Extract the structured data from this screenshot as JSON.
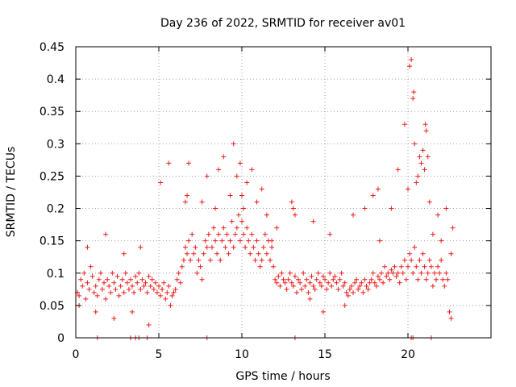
{
  "chart_data": {
    "type": "scatter",
    "title": "Day 236 of 2022, SRMTID for receiver av01",
    "xlabel": "GPS time / hours",
    "ylabel": "SRMTID / TECUs",
    "xlim": [
      0,
      25
    ],
    "ylim": [
      0,
      0.45
    ],
    "x_ticks": [
      0,
      5,
      10,
      15,
      20
    ],
    "x_tick_labels": [
      "0",
      "5",
      "10",
      "15",
      "20"
    ],
    "y_ticks": [
      0,
      0.05,
      0.1,
      0.15,
      0.2,
      0.25,
      0.3,
      0.35,
      0.4,
      0.45
    ],
    "y_tick_labels": [
      "0",
      "0.05",
      "0.1",
      "0.15",
      "0.2",
      "0.25",
      "0.3",
      "0.35",
      "0.4",
      "0.45"
    ],
    "grid": true,
    "marker": "plus",
    "color": "#ee1c1c",
    "series": [
      {
        "name": "SRMTID",
        "x": [
          0.1,
          0.2,
          0.3,
          0.4,
          0.5,
          0.6,
          0.7,
          0.8,
          0.9,
          1.0,
          1.1,
          1.2,
          1.3,
          1.4,
          1.5,
          1.6,
          1.7,
          1.8,
          1.9,
          2.0,
          2.1,
          2.2,
          2.3,
          2.4,
          2.5,
          2.6,
          2.7,
          2.8,
          2.9,
          3.0,
          3.1,
          3.2,
          3.3,
          3.4,
          3.5,
          3.6,
          3.7,
          3.8,
          3.9,
          4.0,
          4.1,
          4.2,
          4.3,
          4.4,
          4.5,
          4.6,
          4.7,
          4.8,
          4.9,
          5.0,
          5.1,
          5.2,
          5.3,
          5.4,
          5.5,
          5.6,
          5.7,
          5.8,
          5.9,
          6.0,
          6.1,
          6.2,
          6.3,
          6.4,
          6.5,
          6.6,
          6.7,
          6.8,
          6.9,
          7.0,
          7.1,
          7.2,
          7.3,
          7.4,
          7.5,
          7.6,
          7.7,
          7.8,
          7.9,
          8.0,
          8.1,
          8.2,
          8.3,
          8.4,
          8.5,
          8.6,
          8.7,
          8.8,
          8.9,
          9.0,
          9.1,
          9.2,
          9.3,
          9.4,
          9.5,
          9.6,
          9.7,
          9.8,
          9.9,
          10.0,
          10.1,
          10.2,
          10.3,
          10.4,
          10.5,
          10.6,
          10.7,
          10.8,
          10.9,
          11.0,
          11.1,
          11.2,
          11.3,
          11.4,
          11.5,
          11.6,
          11.7,
          11.8,
          11.9,
          12.0,
          12.1,
          12.2,
          12.3,
          12.4,
          12.5,
          12.6,
          12.7,
          12.8,
          12.9,
          13.0,
          13.1,
          13.2,
          13.3,
          13.4,
          13.5,
          13.6,
          13.7,
          13.8,
          13.9,
          14.0,
          14.1,
          14.2,
          14.3,
          14.4,
          14.5,
          14.6,
          14.7,
          14.8,
          14.9,
          15.0,
          15.1,
          15.2,
          15.3,
          15.4,
          15.5,
          15.6,
          15.7,
          15.8,
          15.9,
          16.0,
          16.1,
          16.2,
          16.3,
          16.4,
          16.5,
          16.6,
          16.7,
          16.8,
          16.9,
          17.0,
          17.1,
          17.2,
          17.3,
          17.4,
          17.5,
          17.6,
          17.7,
          17.8,
          17.9,
          18.0,
          18.1,
          18.2,
          18.3,
          18.4,
          18.5,
          18.6,
          18.7,
          18.8,
          18.9,
          19.0,
          19.1,
          19.2,
          19.3,
          19.4,
          19.5,
          19.6,
          19.7,
          19.8,
          19.9,
          20.0,
          20.1,
          20.2,
          20.3,
          20.4,
          20.5,
          20.6,
          20.7,
          20.8,
          20.9,
          21.0,
          21.1,
          21.2,
          21.3,
          21.4,
          21.5,
          21.6,
          21.7,
          21.8,
          21.9,
          22.0,
          22.1,
          22.2,
          22.3,
          22.4,
          22.5,
          22.6,
          22.7,
          0.2,
          0.7,
          1.2,
          1.8,
          2.3,
          2.9,
          3.4,
          3.9,
          4.4,
          5.1,
          5.6,
          6.6,
          6.7,
          6.8,
          7.6,
          7.9,
          8.4,
          8.6,
          8.9,
          9.3,
          9.5,
          9.7,
          9.9,
          10.0,
          10.1,
          10.3,
          10.6,
          10.9,
          11.2,
          11.5,
          11.8,
          12.1,
          13.0,
          13.1,
          13.2,
          14.1,
          14.3,
          14.9,
          15.3,
          16.2,
          16.7,
          17.4,
          17.9,
          18.2,
          18.3,
          19.0,
          19.4,
          19.8,
          20.0,
          20.1,
          20.2,
          20.3,
          20.35,
          20.4,
          20.5,
          20.6,
          20.7,
          20.8,
          20.9,
          21.0,
          21.05,
          21.1,
          21.2,
          21.3,
          21.5,
          21.8,
          22.0,
          22.3,
          22.6,
          1.3,
          3.3,
          3.6,
          3.8,
          4.3,
          7.9,
          13.2,
          20.2,
          20.3,
          21.4
        ],
        "y": [
          0.07,
          0.065,
          0.09,
          0.08,
          0.1,
          0.06,
          0.085,
          0.075,
          0.11,
          0.095,
          0.07,
          0.08,
          0.065,
          0.09,
          0.1,
          0.075,
          0.085,
          0.06,
          0.09,
          0.08,
          0.07,
          0.1,
          0.085,
          0.075,
          0.095,
          0.065,
          0.08,
          0.09,
          0.07,
          0.1,
          0.085,
          0.075,
          0.09,
          0.08,
          0.07,
          0.095,
          0.085,
          0.1,
          0.075,
          0.09,
          0.08,
          0.085,
          0.07,
          0.095,
          0.08,
          0.09,
          0.075,
          0.085,
          0.07,
          0.08,
          0.065,
          0.075,
          0.085,
          0.06,
          0.07,
          0.08,
          0.05,
          0.065,
          0.07,
          0.075,
          0.09,
          0.1,
          0.085,
          0.11,
          0.12,
          0.14,
          0.13,
          0.15,
          0.12,
          0.16,
          0.13,
          0.14,
          0.1,
          0.12,
          0.11,
          0.09,
          0.13,
          0.15,
          0.14,
          0.16,
          0.12,
          0.14,
          0.17,
          0.15,
          0.13,
          0.16,
          0.12,
          0.15,
          0.17,
          0.14,
          0.16,
          0.13,
          0.15,
          0.18,
          0.14,
          0.16,
          0.17,
          0.19,
          0.15,
          0.18,
          0.16,
          0.14,
          0.17,
          0.15,
          0.13,
          0.16,
          0.14,
          0.12,
          0.15,
          0.13,
          0.11,
          0.12,
          0.14,
          0.16,
          0.13,
          0.15,
          0.12,
          0.14,
          0.11,
          0.09,
          0.085,
          0.095,
          0.08,
          0.1,
          0.09,
          0.085,
          0.075,
          0.09,
          0.1,
          0.085,
          0.08,
          0.095,
          0.07,
          0.09,
          0.085,
          0.075,
          0.1,
          0.08,
          0.09,
          0.07,
          0.085,
          0.095,
          0.08,
          0.075,
          0.09,
          0.1,
          0.085,
          0.08,
          0.095,
          0.09,
          0.075,
          0.085,
          0.1,
          0.08,
          0.09,
          0.095,
          0.085,
          0.075,
          0.09,
          0.1,
          0.08,
          0.085,
          0.07,
          0.065,
          0.075,
          0.08,
          0.07,
          0.085,
          0.09,
          0.075,
          0.08,
          0.085,
          0.07,
          0.09,
          0.08,
          0.075,
          0.085,
          0.09,
          0.1,
          0.085,
          0.08,
          0.095,
          0.09,
          0.1,
          0.085,
          0.11,
          0.095,
          0.1,
          0.09,
          0.105,
          0.1,
          0.11,
          0.095,
          0.1,
          0.085,
          0.11,
          0.1,
          0.12,
          0.09,
          0.11,
          0.13,
          0.12,
          0.1,
          0.14,
          0.11,
          0.09,
          0.12,
          0.1,
          0.13,
          0.11,
          0.09,
          0.1,
          0.12,
          0.11,
          0.08,
          0.1,
          0.09,
          0.11,
          0.1,
          0.12,
          0.09,
          0.08,
          0.1,
          0.09,
          0.04,
          0.13,
          0.17,
          0.05,
          0.14,
          0.04,
          0.16,
          0.03,
          0.13,
          0.04,
          0.14,
          0.02,
          0.24,
          0.27,
          0.21,
          0.22,
          0.27,
          0.21,
          0.25,
          0.2,
          0.26,
          0.28,
          0.22,
          0.3,
          0.25,
          0.27,
          0.22,
          0.2,
          0.24,
          0.26,
          0.21,
          0.23,
          0.19,
          0.15,
          0.17,
          0.21,
          0.2,
          0.19,
          0.06,
          0.18,
          0.04,
          0.16,
          0.05,
          0.19,
          0.2,
          0.22,
          0.23,
          0.15,
          0.2,
          0.26,
          0.33,
          0.23,
          0.42,
          0.43,
          0.37,
          0.38,
          0.3,
          0.24,
          0.25,
          0.28,
          0.27,
          0.29,
          0.26,
          0.33,
          0.32,
          0.28,
          0.21,
          0.16,
          0.19,
          0.15,
          0.2,
          0.03,
          0.0,
          0.0,
          0.0,
          0.0,
          0.0,
          0.0,
          0.0,
          0.0,
          0.0,
          0.0
        ]
      }
    ]
  }
}
